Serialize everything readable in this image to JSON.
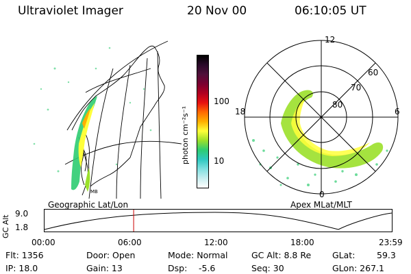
{
  "header": {
    "title": "Ultraviolet Imager",
    "date": "20 Nov 00",
    "time": "06:10:05 UT"
  },
  "colorbar": {
    "unit_label": "photon cm⁻²s⁻¹",
    "tick_labels": [
      "100",
      "10"
    ],
    "colors": [
      "#ffffff",
      "#c8eef0",
      "#7fe0e0",
      "#2ec8c0",
      "#2ecc71",
      "#9be02a",
      "#ffff3a",
      "#ffb000",
      "#ff6a00",
      "#e81010",
      "#b00020",
      "#7a0030",
      "#50103a",
      "#2a0a2a",
      "#000000"
    ]
  },
  "left_panel": {
    "caption": "Geographic Lat/Lon",
    "label": "MB"
  },
  "right_panel": {
    "caption": "Apex MLat/MLT",
    "mlt_labels": [
      "12",
      "18",
      "6",
      "0"
    ],
    "mlat_labels": [
      "60",
      "70",
      "80"
    ]
  },
  "timeline": {
    "axis_label": "GC Alt",
    "y_labels": [
      "9.0",
      "1.8"
    ],
    "ticks": [
      "00:00",
      "06:00",
      "12:00",
      "18:00",
      "23:59"
    ],
    "marker_time": "06:10",
    "marker_color": "#cc0000"
  },
  "info": {
    "flt": "Flt: 1356",
    "ip": "IP: 18.0",
    "door": "Door: Open",
    "gain": "Gain: 13",
    "mode": "Mode: Normal",
    "dsp": "Dsp:",
    "dsp_val": "-5.6",
    "gcalt": "GC Alt: 8.8 Re",
    "seq": "Seq: 30",
    "glat": "GLat:",
    "glat_val": "59.3",
    "glon": "GLon: 267.1"
  }
}
